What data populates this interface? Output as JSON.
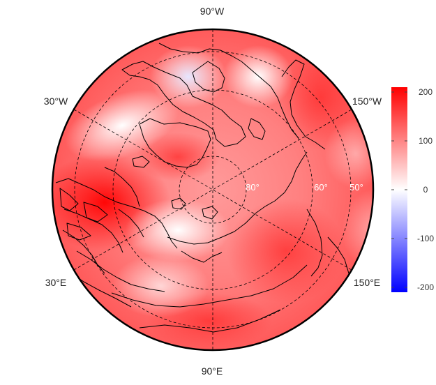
{
  "projection": "north-polar-stereographic",
  "longitude_labels": {
    "top": "90°W",
    "upper_left": "30°W",
    "upper_right": "150°W",
    "lower_left": "30°E",
    "lower_right": "150°E",
    "bottom": "90°E"
  },
  "latitude_labels": [
    "80°",
    "60°",
    "50°"
  ],
  "colorbar": {
    "min": -210,
    "max": 210,
    "ticks": [
      {
        "value": 200,
        "label": "200"
      },
      {
        "value": 100,
        "label": "100"
      },
      {
        "value": 0,
        "label": "0"
      },
      {
        "value": -100,
        "label": "-100"
      },
      {
        "value": -200,
        "label": "-200"
      }
    ],
    "colors": {
      "low": "#0000ff",
      "mid": "#ffffff",
      "high": "#ff0000"
    }
  },
  "grid": true
}
